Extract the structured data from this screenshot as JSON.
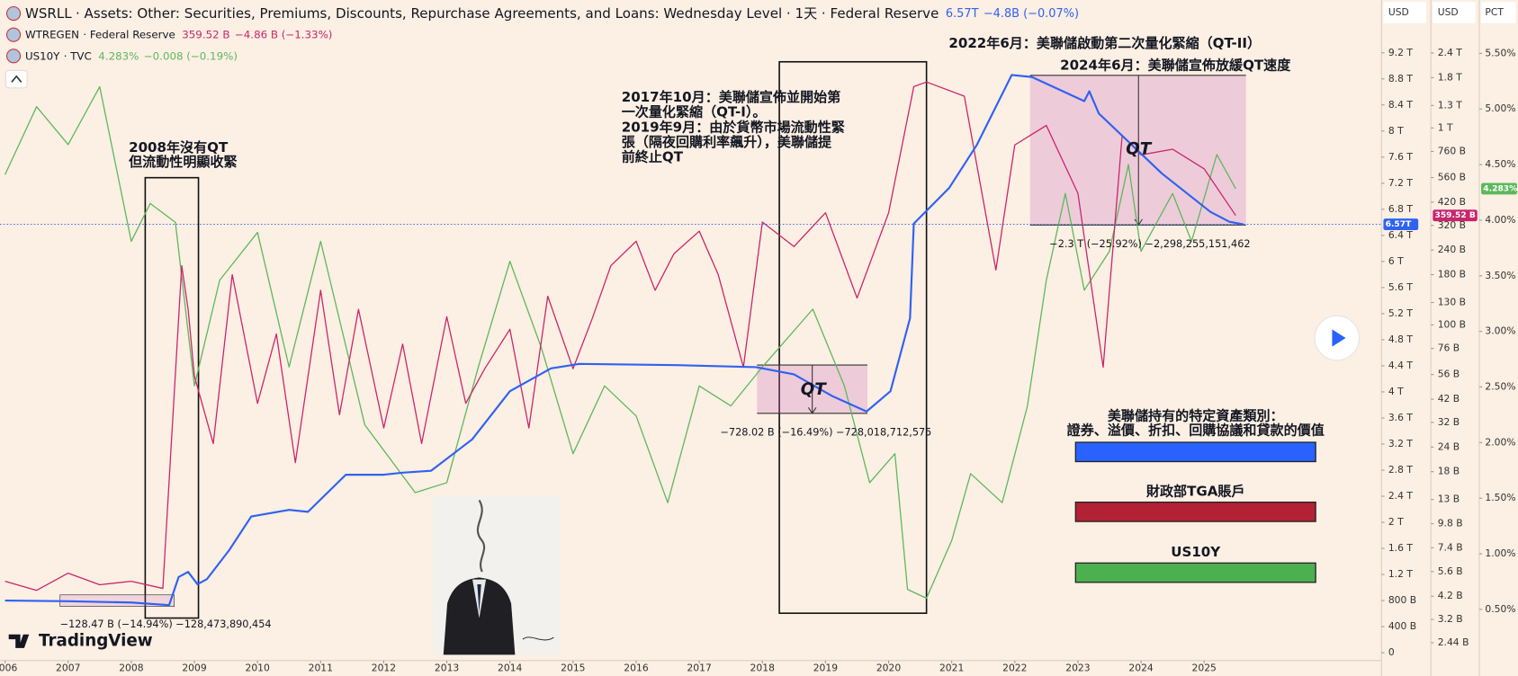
{
  "chart_data": {
    "type": "line",
    "branding": "TradingView",
    "xlim": [
      2005.92,
      2027.81
    ],
    "xticks": [
      2006,
      2007,
      2008,
      2009,
      2010,
      2011,
      2012,
      2013,
      2014,
      2015,
      2016,
      2017,
      2018,
      2019,
      2020,
      2021,
      2022,
      2023,
      2024,
      2025
    ],
    "y_axis_label": "USD",
    "y2_axis_label": "USD",
    "y3_axis_label": "PCT",
    "ylim": [
      -0.12,
      10.01
    ],
    "yticks": [
      0,
      {
        "value": 0.4,
        "label": "400 B"
      },
      {
        "value": 0.8,
        "label": "800 B"
      },
      {
        "value": 1.2,
        "label": "1.2 T"
      },
      {
        "value": 1.6,
        "label": "1.6 T"
      },
      {
        "value": 2,
        "label": "2 T"
      },
      {
        "value": 2.4,
        "label": "2.4 T"
      },
      {
        "value": 2.8,
        "label": "2.8 T"
      },
      {
        "value": 3.2,
        "label": "3.2 T"
      },
      {
        "value": 3.6,
        "label": "3.6 T"
      },
      {
        "value": 4,
        "label": "4 T"
      },
      {
        "value": 4.4,
        "label": "4.4 T"
      },
      {
        "value": 4.8,
        "label": "4.8 T"
      },
      {
        "value": 5.2,
        "label": "5.2 T"
      },
      {
        "value": 5.6,
        "label": "5.6 T"
      },
      {
        "value": 6,
        "label": "6 T"
      },
      {
        "value": 6.4,
        "label": "6.4 T"
      },
      {
        "value": 6.8,
        "label": "6.8 T"
      },
      {
        "value": 7.2,
        "label": "7.2 T"
      },
      {
        "value": 7.6,
        "label": "7.6 T"
      },
      {
        "value": 8,
        "label": "8 T"
      },
      {
        "value": 8.4,
        "label": "8.4 T"
      },
      {
        "value": 8.8,
        "label": "8.8 T"
      },
      {
        "value": 9.2,
        "label": "9.2 T"
      }
    ],
    "y2lim": [
      1.98,
      4460
    ],
    "y2log": true,
    "y2ticks": [
      {
        "value": 2.44,
        "label": "2.44 B"
      },
      {
        "value": 3.2,
        "label": "3.2 B"
      },
      {
        "value": 4.2,
        "label": "4.2 B"
      },
      {
        "value": 5.6,
        "label": "5.6 B"
      },
      {
        "value": 7.4,
        "label": "7.4 B"
      },
      {
        "value": 9.8,
        "label": "9.8 B"
      },
      {
        "value": 13,
        "label": "13 B"
      },
      {
        "value": 18,
        "label": "18 B"
      },
      {
        "value": 24,
        "label": "24 B"
      },
      {
        "value": 32,
        "label": "32 B"
      },
      {
        "value": 42,
        "label": "42 B"
      },
      {
        "value": 56,
        "label": "56 B"
      },
      {
        "value": 76,
        "label": "76 B"
      },
      {
        "value": 100,
        "label": "100 B"
      },
      {
        "value": 130,
        "label": "130 B"
      },
      {
        "value": 180,
        "label": "180 B"
      },
      {
        "value": 240,
        "label": "240 B"
      },
      {
        "value": 320,
        "label": "320 B"
      },
      {
        "value": 420,
        "label": "420 B"
      },
      {
        "value": 560,
        "label": "560 B"
      },
      {
        "value": 760,
        "label": "760 B"
      },
      {
        "value": 1000,
        "label": "1 T"
      },
      {
        "value": 1300,
        "label": "1.3 T"
      },
      {
        "value": 1800,
        "label": "1.8 T"
      },
      {
        "value": 2400,
        "label": "2.4 T"
      }
    ],
    "y3lim": [
      0.04,
      5.98
    ],
    "y3ticks": [
      {
        "value": 0.5,
        "label": "0.50%"
      },
      {
        "value": 1,
        "label": "1.00%"
      },
      {
        "value": 1.5,
        "label": "1.50%"
      },
      {
        "value": 2,
        "label": "2.00%"
      },
      {
        "value": 2.5,
        "label": "2.50%"
      },
      {
        "value": 3,
        "label": "3.00%"
      },
      {
        "value": 3.5,
        "label": "3.50%"
      },
      {
        "value": 4,
        "label": "4.00%"
      },
      {
        "value": 4.5,
        "label": "4.50%"
      },
      {
        "value": 5,
        "label": "5.00%"
      },
      {
        "value": 5.5,
        "label": "5.50%"
      }
    ],
    "series": [
      {
        "name": "WSRLL",
        "description": "· Assets: Other: Securities, Premiums, Discounts, Repurchase Agreements, and Loans: Wednesday Level · 1天 · Federal Reserve",
        "last": "6.57T",
        "change": "−4.8B (−0.07%)",
        "color": "#2f62f0",
        "axis": "y",
        "x": [
          2006.0,
          2007.0,
          2008.0,
          2008.6,
          2008.75,
          2008.9,
          2009.05,
          2009.2,
          2009.55,
          2009.9,
          2010.5,
          2010.8,
          2011.4,
          2012.0,
          2012.3,
          2012.75,
          2013.4,
          2014.0,
          2014.65,
          2015.1,
          2016.65,
          2017.9,
          2018.5,
          2019.1,
          2019.65,
          2020.03,
          2020.34,
          2020.4,
          2020.96,
          2021.4,
          2021.95,
          2022.27,
          2023.1,
          2023.18,
          2023.33,
          2024.33,
          2025.1,
          2025.4,
          2025.62
        ],
        "values": [
          0.8,
          0.79,
          0.77,
          0.73,
          1.16,
          1.24,
          1.05,
          1.13,
          1.57,
          2.09,
          2.19,
          2.16,
          2.73,
          2.73,
          2.76,
          2.79,
          3.27,
          4.01,
          4.36,
          4.43,
          4.41,
          4.38,
          4.27,
          3.94,
          3.7,
          4.01,
          5.13,
          6.58,
          7.13,
          7.79,
          8.86,
          8.83,
          8.46,
          8.61,
          8.27,
          7.35,
          6.76,
          6.61,
          6.57
        ]
      },
      {
        "name": "WTREGEN",
        "description": "· Federal Reserve",
        "last": "359.52 B",
        "change": "−4.86 B (−1.33%)",
        "color": "#c8266d",
        "axis": "y2",
        "x": [
          2006.0,
          2006.5,
          2007.0,
          2007.5,
          2008.0,
          2008.5,
          2008.8,
          2008.9,
          2009.0,
          2009.3,
          2009.6,
          2010.0,
          2010.3,
          2010.6,
          2011.0,
          2011.3,
          2011.6,
          2012.0,
          2012.3,
          2012.6,
          2013.0,
          2013.3,
          2013.6,
          2014.0,
          2014.3,
          2014.6,
          2015.0,
          2015.3,
          2015.6,
          2016.0,
          2016.3,
          2016.6,
          2017.0,
          2017.3,
          2017.7,
          2018.0,
          2018.5,
          2019.0,
          2019.5,
          2020.0,
          2020.4,
          2020.6,
          2021.2,
          2021.7,
          2022.0,
          2022.5,
          2023.0,
          2023.4,
          2023.7,
          2024.0,
          2024.5,
          2025.0,
          2025.5
        ],
        "values": [
          5,
          4.5,
          5.5,
          4.8,
          5,
          4.6,
          200,
          120,
          55,
          25,
          180,
          40,
          90,
          20,
          150,
          35,
          120,
          30,
          80,
          25,
          110,
          40,
          60,
          95,
          30,
          140,
          60,
          107,
          200,
          266,
          150,
          230,
          299,
          180,
          61,
          333,
          250,
          371,
          137,
          371,
          1620,
          1710,
          1450,
          190,
          820,
          1030,
          466,
          61,
          915,
          730,
          780,
          620,
          359.52
        ]
      },
      {
        "name": "US10Y",
        "description": "· TVC",
        "last": "4.283%",
        "change": "−0.008 (−0.19%)",
        "color": "#5cb85c",
        "axis": "y3",
        "x": [
          2006.0,
          2006.5,
          2007.0,
          2007.5,
          2008.0,
          2008.3,
          2008.7,
          2009.0,
          2009.4,
          2010.0,
          2010.5,
          2011.0,
          2011.7,
          2012.5,
          2013.0,
          2013.5,
          2014.0,
          2014.5,
          2015.0,
          2015.5,
          2016.0,
          2016.5,
          2017.0,
          2017.5,
          2018.0,
          2018.8,
          2019.3,
          2019.7,
          2020.1,
          2020.3,
          2020.6,
          2021.0,
          2021.3,
          2021.8,
          2022.2,
          2022.5,
          2022.8,
          2023.1,
          2023.5,
          2023.8,
          2024.0,
          2024.5,
          2024.8,
          2025.2,
          2025.5
        ],
        "values": [
          4.41,
          5.02,
          4.68,
          5.2,
          3.81,
          4.15,
          3.98,
          2.51,
          3.46,
          3.89,
          2.68,
          3.81,
          2.16,
          1.55,
          1.64,
          2.68,
          3.63,
          2.85,
          1.9,
          2.51,
          2.24,
          1.46,
          2.51,
          2.33,
          2.68,
          3.2,
          2.51,
          1.64,
          1.9,
          0.68,
          0.6,
          1.12,
          1.72,
          1.46,
          2.33,
          3.46,
          4.24,
          3.37,
          3.72,
          4.5,
          3.72,
          4.24,
          3.81,
          4.59,
          4.283
        ]
      }
    ],
    "annotations": [
      {
        "lines": [
          "2008年沒有QT",
          "但流動性明顯收緊"
        ]
      },
      {
        "lines": [
          "2017年10月：美聯儲宣佈並開始第",
          "一次量化緊縮（QT-I）。",
          "2019年9月：由於貨幣市場流動性緊",
          "張（隔夜回購利率飆升），美聯儲提",
          "前終止QT"
        ]
      },
      {
        "lines": [
          "2022年6月：美聯儲啟動第二次量化緊縮（QT-II）"
        ]
      },
      {
        "lines": [
          "2024年6月：美聯儲宣佈放緩QT速度"
        ]
      }
    ],
    "measures": [
      "−128.47 B (−14.94%) −128,473,890,454",
      "−728.02 B (−16.49%) −728,018,712,575",
      "−2.3 T (−25.92%) −2,298,255,151,462"
    ],
    "qt_labels": [
      "QT",
      "QT"
    ],
    "legend": [
      {
        "lines": [
          "美聯儲持有的特定資產類別：",
          "證券、溢價、折扣、回購協議和貸款的價值"
        ],
        "color": "#2962ff"
      },
      {
        "lines": [
          "財政部TGA賬戶"
        ],
        "color": "#b22234"
      },
      {
        "lines": [
          "US10Y"
        ],
        "color": "#4caf50"
      }
    ]
  }
}
